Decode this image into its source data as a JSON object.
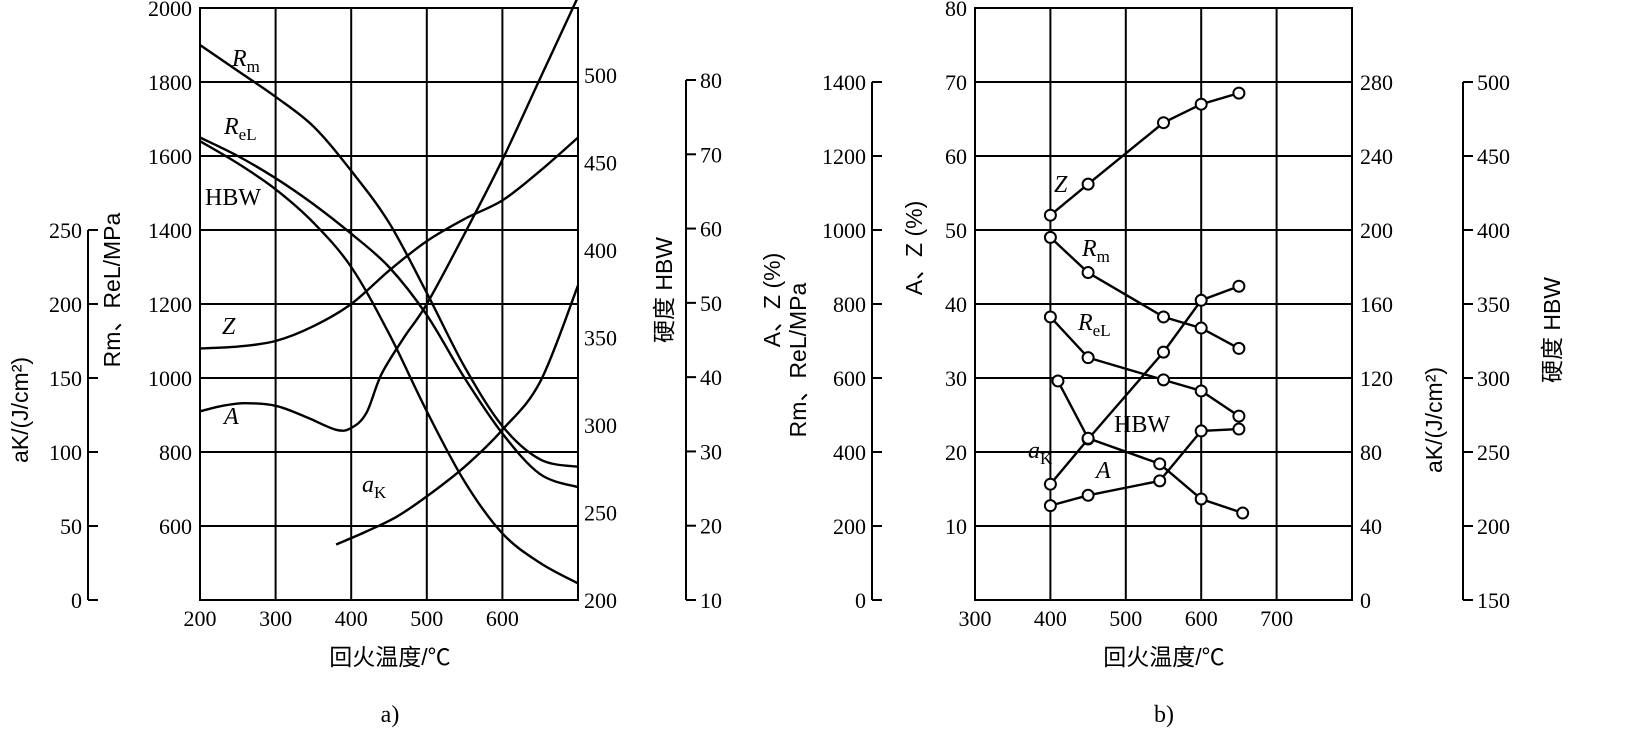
{
  "chart_data": [
    {
      "type": "line",
      "panel_label": "a)",
      "xlabel": "回火温度/℃",
      "x_ticks": [
        200,
        300,
        400,
        500,
        600
      ],
      "xlim": [
        200,
        700
      ],
      "grid": true,
      "axes": {
        "strength": {
          "ticks": [
            600,
            800,
            1000,
            1200,
            1400,
            1600,
            1800,
            2000
          ],
          "lim": [
            400,
            2000
          ],
          "label": "Rm、ReL/MPa"
        },
        "ak": {
          "ticks": [
            0,
            50,
            100,
            150,
            200,
            250
          ],
          "lim": [
            0,
            250
          ],
          "label": "aK/(J/cm²)"
        },
        "hbw": {
          "ticks": [
            200,
            250,
            300,
            350,
            400,
            450,
            500
          ],
          "lim": [
            200,
            500
          ],
          "label": "硬度 HBW"
        },
        "az": {
          "ticks": [
            10,
            20,
            30,
            40,
            50,
            60,
            70,
            80
          ],
          "lim": [
            10,
            80
          ],
          "label": "A、Z (%)"
        }
      },
      "series": [
        {
          "name": "Rm",
          "axis": "strength",
          "points": [
            [
              200,
              1900
            ],
            [
              250,
              1830
            ],
            [
              300,
              1760
            ],
            [
              350,
              1680
            ],
            [
              400,
              1560
            ],
            [
              450,
              1420
            ],
            [
              500,
              1230
            ],
            [
              550,
              1030
            ],
            [
              600,
              870
            ],
            [
              650,
              780
            ],
            [
              700,
              760
            ]
          ]
        },
        {
          "name": "ReL",
          "axis": "strength",
          "points": [
            [
              200,
              1650
            ],
            [
              250,
              1600
            ],
            [
              300,
              1540
            ],
            [
              350,
              1470
            ],
            [
              400,
              1390
            ],
            [
              450,
              1300
            ],
            [
              500,
              1170
            ],
            [
              550,
              1000
            ],
            [
              600,
              850
            ],
            [
              650,
              740
            ],
            [
              700,
              705
            ]
          ]
        },
        {
          "name": "HBW",
          "axis": "strength",
          "points": [
            [
              200,
              1640
            ],
            [
              250,
              1580
            ],
            [
              300,
              1510
            ],
            [
              350,
              1420
            ],
            [
              400,
              1300
            ],
            [
              450,
              1120
            ],
            [
              500,
              910
            ],
            [
              550,
              720
            ],
            [
              600,
              580
            ],
            [
              650,
              500
            ],
            [
              700,
              445
            ]
          ]
        },
        {
          "name": "Z",
          "axis": "strength",
          "points": [
            [
              200,
              1080
            ],
            [
              250,
              1085
            ],
            [
              300,
              1100
            ],
            [
              350,
              1140
            ],
            [
              400,
              1200
            ],
            [
              450,
              1290
            ],
            [
              500,
              1370
            ],
            [
              550,
              1430
            ],
            [
              600,
              1480
            ],
            [
              650,
              1560
            ],
            [
              700,
              1650
            ]
          ]
        },
        {
          "name": "A",
          "axis": "strength",
          "points": [
            [
              200,
              910
            ],
            [
              230,
              925
            ],
            [
              260,
              932
            ],
            [
              300,
              925
            ],
            [
              340,
              895
            ],
            [
              380,
              860
            ],
            [
              400,
              865
            ],
            [
              420,
              905
            ],
            [
              440,
              1010
            ],
            [
              470,
              1110
            ],
            [
              500,
              1200
            ],
            [
              550,
              1390
            ],
            [
              600,
              1590
            ],
            [
              650,
              1810
            ],
            [
              700,
              2030
            ]
          ]
        },
        {
          "name": "aK",
          "axis": "strength",
          "points": [
            [
              380,
              550
            ],
            [
              420,
              585
            ],
            [
              460,
              625
            ],
            [
              500,
              680
            ],
            [
              550,
              760
            ],
            [
              600,
              860
            ],
            [
              650,
              990
            ],
            [
              700,
              1250
            ]
          ]
        }
      ],
      "labels": {
        "Rm": "Rm",
        "ReL": "ReL",
        "HBW": "HBW",
        "Z": "Z",
        "A": "A",
        "aK": "aK"
      }
    },
    {
      "type": "line",
      "panel_label": "b)",
      "xlabel": "回火温度/℃",
      "x_ticks": [
        300,
        400,
        500,
        600,
        700
      ],
      "xlim": [
        300,
        800
      ],
      "grid": true,
      "axes": {
        "strength": {
          "ticks": [
            0,
            200,
            400,
            600,
            800,
            1000,
            1200,
            1400
          ],
          "lim": [
            0,
            1600
          ],
          "label": "Rm、ReL/MPa"
        },
        "az": {
          "ticks": [
            10,
            20,
            30,
            40,
            50,
            60,
            70,
            80
          ],
          "lim": [
            0,
            80
          ],
          "label": "A、Z (%)"
        },
        "ak": {
          "ticks": [
            0,
            40,
            80,
            120,
            160,
            200,
            240,
            280
          ],
          "lim": [
            0,
            320
          ],
          "label": "aK/(J/cm²)"
        },
        "hbw": {
          "ticks": [
            150,
            200,
            250,
            300,
            350,
            400,
            450,
            500
          ],
          "lim": [
            150,
            550
          ],
          "label": "硬度 HBW"
        }
      },
      "series": [
        {
          "name": "Z",
          "axis": "az",
          "marker": "circle",
          "points": [
            [
              400,
              52
            ],
            [
              450,
              56.2
            ],
            [
              550,
              64.5
            ],
            [
              600,
              67
            ],
            [
              650,
              68.5
            ]
          ]
        },
        {
          "name": "Rm",
          "axis": "strength",
          "marker": "circle",
          "points": [
            [
              400,
              980
            ],
            [
              450,
              885
            ],
            [
              550,
              765
            ],
            [
              600,
              735
            ],
            [
              650,
              680
            ]
          ]
        },
        {
          "name": "ReL",
          "axis": "strength",
          "marker": "circle",
          "points": [
            [
              400,
              765
            ],
            [
              450,
              655
            ],
            [
              550,
              595
            ],
            [
              600,
              565
            ],
            [
              650,
              497
            ]
          ]
        },
        {
          "name": "HBW",
          "axis": "strength",
          "marker": "circle",
          "points": [
            [
              400,
              313
            ],
            [
              450,
              435
            ],
            [
              550,
              670
            ],
            [
              600,
              810
            ],
            [
              650,
              848
            ]
          ]
        },
        {
          "name": "aK",
          "axis": "strength",
          "marker": "circle",
          "points": [
            [
              410,
              592
            ],
            [
              450,
              437
            ],
            [
              545,
              368
            ],
            [
              600,
              273
            ],
            [
              655,
              235
            ]
          ]
        },
        {
          "name": "A",
          "axis": "strength",
          "marker": "circle",
          "points": [
            [
              400,
              255
            ],
            [
              450,
              283
            ],
            [
              545,
              322
            ],
            [
              600,
              457
            ],
            [
              650,
              462
            ]
          ]
        }
      ],
      "labels": {
        "Z": "Z",
        "Rm": "Rm",
        "ReL": "ReL",
        "HBW": "HBW",
        "aK": "aK",
        "A": "A"
      }
    }
  ]
}
